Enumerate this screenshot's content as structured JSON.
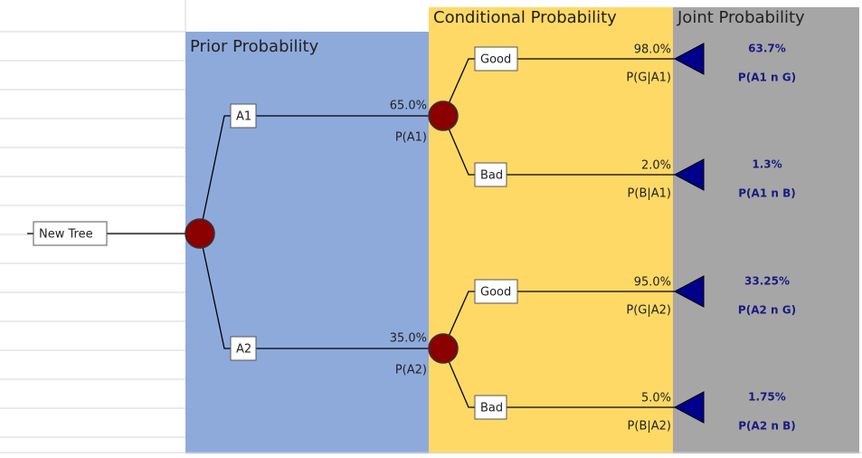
{
  "headers": {
    "prior": "Prior Probability",
    "conditional": "Conditional Probability",
    "joint": "Joint Probability"
  },
  "root": "New Tree",
  "branches": [
    {
      "label": "A1",
      "prob": "65.0%",
      "name": "P(A1)",
      "outcomes": [
        {
          "label": "Good",
          "prob": "98.0%",
          "name": "P(G|A1)",
          "joint": "63.7%",
          "joint_name": "P(A1 n G)"
        },
        {
          "label": "Bad",
          "prob": "2.0%",
          "name": "P(B|A1)",
          "joint": "1.3%",
          "joint_name": "P(A1 n B)"
        }
      ]
    },
    {
      "label": "A2",
      "prob": "35.0%",
      "name": "P(A2)",
      "outcomes": [
        {
          "label": "Good",
          "prob": "95.0%",
          "name": "P(G|A2)",
          "joint": "33.25%",
          "joint_name": "P(A2 n G)"
        },
        {
          "label": "Bad",
          "prob": "5.0%",
          "name": "P(B|A2)",
          "joint": "1.75%",
          "joint_name": "P(A2 n B)"
        }
      ]
    }
  ]
}
